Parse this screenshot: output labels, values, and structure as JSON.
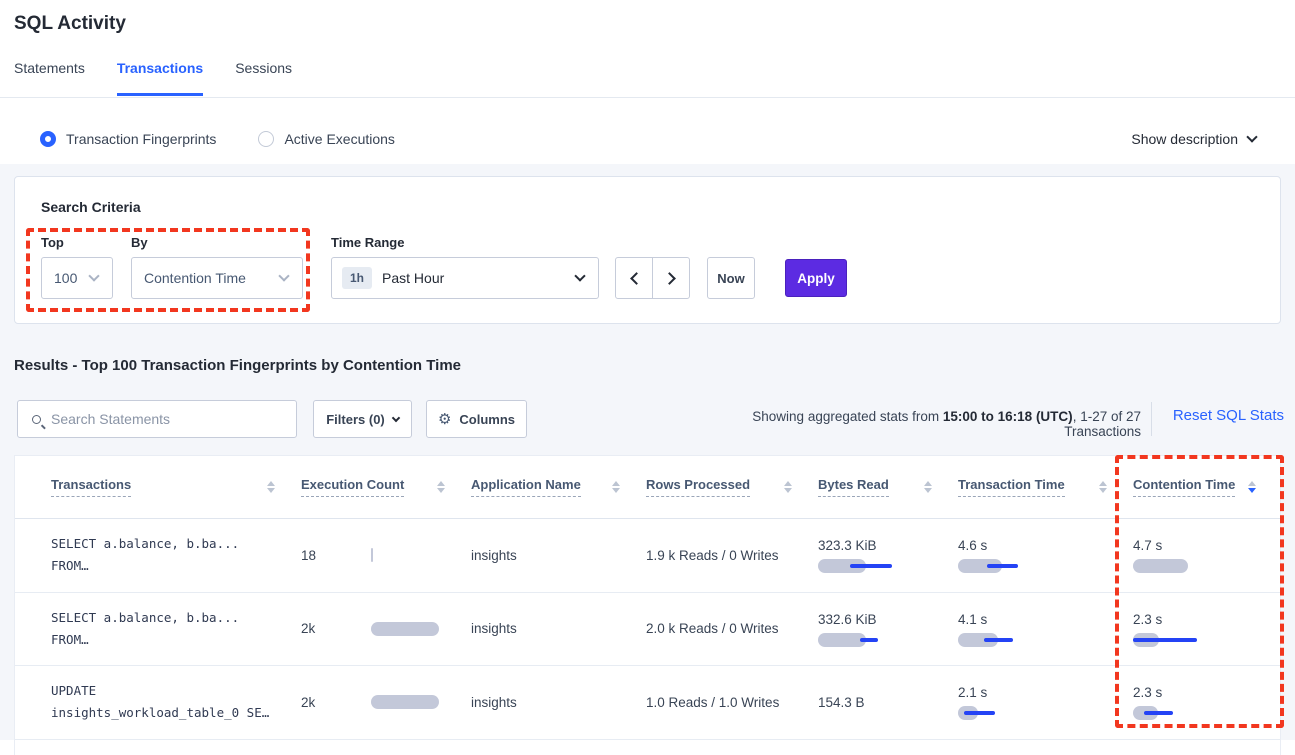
{
  "page": {
    "title": "SQL Activity"
  },
  "tabs": [
    {
      "label": "Statements"
    },
    {
      "label": "Transactions"
    },
    {
      "label": "Sessions"
    }
  ],
  "view_toggle": {
    "fingerprints_label": "Transaction Fingerprints",
    "active_executions_label": "Active Executions",
    "show_description_label": "Show description"
  },
  "search_criteria": {
    "heading": "Search Criteria",
    "top": {
      "label": "Top",
      "value": "100"
    },
    "by": {
      "label": "By",
      "value": "Contention Time"
    },
    "time_range": {
      "label": "Time Range",
      "badge": "1h",
      "value": "Past Hour"
    },
    "now_label": "Now",
    "apply_label": "Apply"
  },
  "results": {
    "heading": "Results - Top 100 Transaction Fingerprints by Contention Time",
    "search_placeholder": "Search Statements",
    "filters_label": "Filters (0)",
    "columns_label": "Columns",
    "stats_prefix": "Showing aggregated stats from ",
    "stats_bold": "15:00 to 16:18 (UTC)",
    "stats_suffix": ", 1-27 of 27 Transactions",
    "reset_label": "Reset SQL Stats"
  },
  "table": {
    "columns": [
      "Transactions",
      "Execution Count",
      "Application Name",
      "Rows Processed",
      "Bytes Read",
      "Transaction Time",
      "Contention Time"
    ],
    "sorted_column": "Contention Time",
    "sort_direction": "desc",
    "rows": [
      {
        "transaction_line1": "SELECT a.balance, b.ba...",
        "transaction_line2": "FROM…",
        "execution_count": "18",
        "exec_bar": {
          "gray": 2
        },
        "application_name": "insights",
        "rows_processed": "1.9 k Reads / 0 Writes",
        "bytes_read": "323.3 KiB",
        "bytes_bar": {
          "gray": 48,
          "blue": [
            32,
            74
          ]
        },
        "transaction_time": "4.6 s",
        "txn_bar": {
          "gray": 44,
          "blue": [
            29,
            60
          ]
        },
        "contention_time": "4.7 s",
        "contention_bar": {
          "gray": 55
        }
      },
      {
        "transaction_line1": "SELECT a.balance, b.ba...",
        "transaction_line2": "FROM…",
        "execution_count": "2k",
        "exec_bar": {
          "gray": 68
        },
        "application_name": "insights",
        "rows_processed": "2.0 k Reads / 0 Writes",
        "bytes_read": "332.6 KiB",
        "bytes_bar": {
          "gray": 48,
          "blue": [
            42,
            60
          ]
        },
        "transaction_time": "4.1 s",
        "txn_bar": {
          "gray": 40,
          "blue": [
            26,
            55
          ]
        },
        "contention_time": "2.3 s",
        "contention_bar": {
          "gray": 26,
          "blue": [
            0,
            64
          ]
        }
      },
      {
        "transaction_line1": "UPDATE",
        "transaction_line2": "insights_workload_table_0 SE…",
        "execution_count": "2k",
        "exec_bar": {
          "gray": 68
        },
        "application_name": "insights",
        "rows_processed": "1.0 Reads / 1.0 Writes",
        "bytes_read": "154.3 B",
        "transaction_time": "2.1 s",
        "txn_bar": {
          "gray": 20,
          "blue": [
            6,
            37
          ]
        },
        "contention_time": "2.3 s",
        "contention_bar": {
          "gray": 25,
          "blue": [
            11,
            40
          ]
        }
      }
    ]
  },
  "colors": {
    "accent_blue": "#2962ff",
    "apply_purple": "#5c2be2",
    "bar_gray": "#c3c8d9",
    "bar_blue": "#2443f5",
    "annotation_red": "#f2371f"
  }
}
